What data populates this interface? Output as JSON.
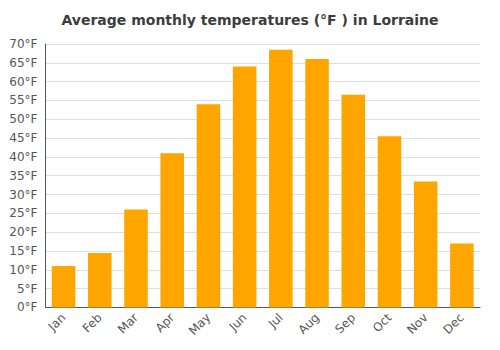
{
  "chart_data": {
    "type": "bar",
    "title": "Average monthly temperatures (°F ) in Lorraine",
    "categories": [
      "Jan",
      "Feb",
      "Mar",
      "Apr",
      "May",
      "Jun",
      "Jul",
      "Aug",
      "Sep",
      "Oct",
      "Nov",
      "Dec"
    ],
    "values": [
      11,
      14.5,
      26,
      41,
      54,
      64,
      68.5,
      66,
      56.5,
      45.5,
      33.5,
      17
    ],
    "color": "#FFA500",
    "ylim": [
      0,
      70
    ],
    "yticks": [
      {
        "value": 0,
        "label": "0°F"
      },
      {
        "value": 5,
        "label": "5°F"
      },
      {
        "value": 10,
        "label": "10°F"
      },
      {
        "value": 15,
        "label": "15°F"
      },
      {
        "value": 20,
        "label": "20°F"
      },
      {
        "value": 25,
        "label": "25°F"
      },
      {
        "value": 30,
        "label": "30°F"
      },
      {
        "value": 35,
        "label": "35°F"
      },
      {
        "value": 40,
        "label": "40°F"
      },
      {
        "value": 45,
        "label": "45°F"
      },
      {
        "value": 50,
        "label": "50°F"
      },
      {
        "value": 55,
        "label": "55°F"
      },
      {
        "value": 60,
        "label": "60°F"
      },
      {
        "value": 65,
        "label": "65°F"
      },
      {
        "value": 70,
        "label": "70°F"
      }
    ],
    "grid": true
  }
}
